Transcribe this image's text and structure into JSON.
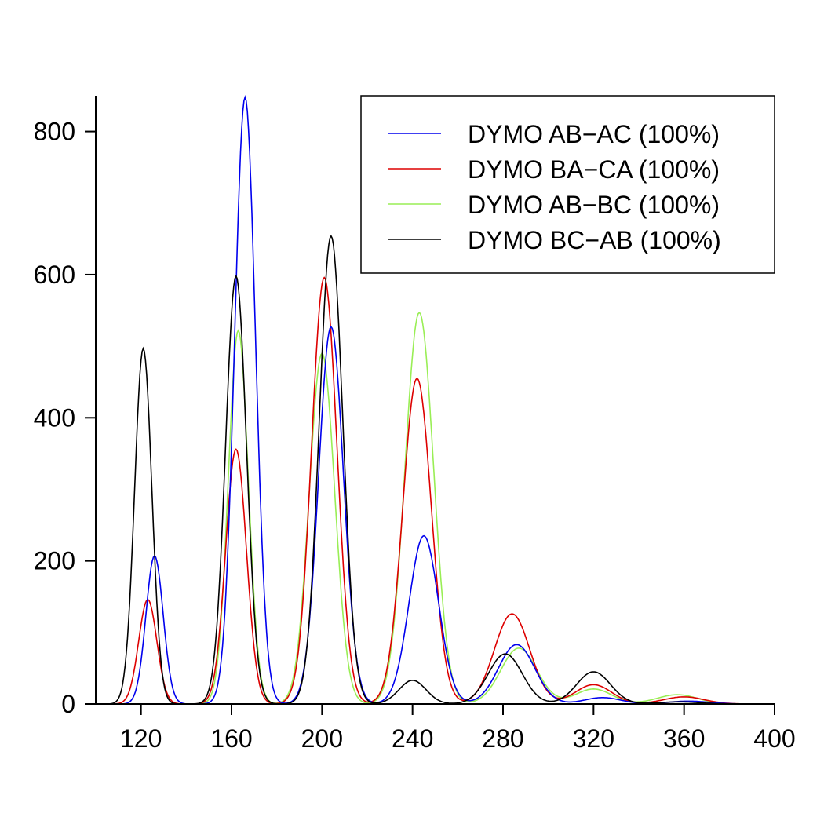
{
  "chart_data": {
    "type": "line",
    "title": "",
    "xlabel": "",
    "ylabel": "",
    "xlim": [
      100,
      400
    ],
    "ylim": [
      0,
      850
    ],
    "x_ticks": [
      120,
      160,
      200,
      240,
      280,
      320,
      360,
      400
    ],
    "y_ticks": [
      0,
      200,
      400,
      600,
      800
    ],
    "x_tick_labels": [
      "120",
      "160",
      "200",
      "240",
      "280",
      "320",
      "360",
      "400"
    ],
    "y_tick_labels": [
      "0",
      "200",
      "400",
      "600",
      "800"
    ],
    "grid": false,
    "legend_position": "top-right",
    "series_shape_note": "each series is a sum of peaks (center x, height y, width sigma in x units)",
    "series": [
      {
        "name": "DYMO AB−AC (100%)",
        "color": "#0000ee",
        "peaks": [
          [
            126,
            207,
            3.8
          ],
          [
            166,
            848,
            4.6
          ],
          [
            204,
            527,
            5.5
          ],
          [
            245,
            235,
            6.5
          ],
          [
            286,
            83,
            8
          ],
          [
            324,
            9,
            8
          ],
          [
            362,
            4,
            9
          ]
        ]
      },
      {
        "name": "DYMO BA−CA (100%)",
        "color": "#dd0000",
        "peaks": [
          [
            123,
            146,
            4
          ],
          [
            162,
            356,
            4.6
          ],
          [
            201,
            596,
            5.6
          ],
          [
            242,
            455,
            6.3
          ],
          [
            284,
            126,
            7.8
          ],
          [
            320,
            27,
            8
          ],
          [
            360,
            10,
            9
          ]
        ]
      },
      {
        "name": "DYMO AB−BC (100%)",
        "color": "#99ee55",
        "peaks": [
          [
            163,
            522,
            4.4
          ],
          [
            200,
            490,
            5.6
          ],
          [
            243,
            547,
            6.3
          ],
          [
            287,
            78,
            8
          ],
          [
            320,
            21,
            8
          ],
          [
            357,
            13,
            9
          ]
        ]
      },
      {
        "name": "DYMO BC−AB (100%)",
        "color": "#000000",
        "peaks": [
          [
            121,
            497,
            3.8
          ],
          [
            162,
            598,
            4.6
          ],
          [
            204,
            654,
            5.2
          ],
          [
            240,
            33,
            6
          ],
          [
            281,
            70,
            7.5
          ],
          [
            320,
            45,
            7.5
          ],
          [
            358,
            3,
            9
          ]
        ]
      }
    ]
  }
}
